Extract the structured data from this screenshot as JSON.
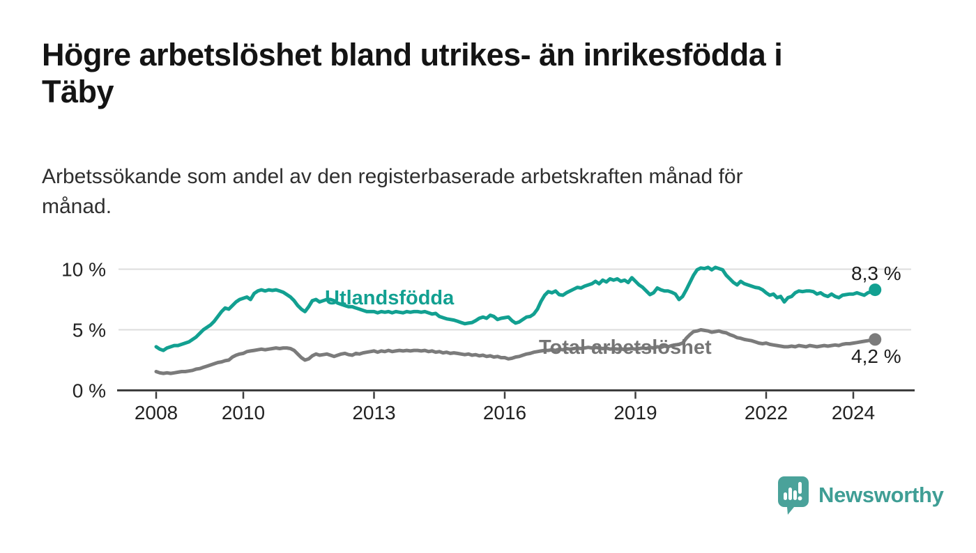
{
  "header": {
    "title": "Högre arbetslöshet bland utrikes- än inrikesfödda i Täby",
    "title_lines": [
      "Högre arbetslöshet bland utrikes- än inrikesfödda i",
      "Täby"
    ],
    "subtitle": "Arbetssökande som andel av den registerbaserade arbetskraften månad för månad.",
    "subtitle_lines": [
      "Arbetssökande som andel av den registerbaserade arbetskraften månad för",
      "månad."
    ]
  },
  "chart_data": {
    "type": "line",
    "title": "Högre arbetslöshet bland utrikes- än inrikesfödda i Täby",
    "xlabel": "",
    "ylabel": "Arbetssökande som andel av den registerbaserade arbetskraften",
    "x_unit": "month",
    "x_range": {
      "start": "2008-01",
      "end": "2024-07",
      "step": "monthly"
    },
    "ylim": [
      0,
      10.8
    ],
    "grid": "horizontal",
    "legend_position": "inline-on-line",
    "x_tick_years": [
      2008,
      2010,
      2013,
      2016,
      2019,
      2022,
      2024
    ],
    "x_tick_labels": [
      "2008",
      "2010",
      "2013",
      "2016",
      "2019",
      "2022",
      "2024"
    ],
    "y_ticks": [
      {
        "value": 0,
        "label": "0 %"
      },
      {
        "value": 5,
        "label": "5 %"
      },
      {
        "value": 10,
        "label": "10 %"
      }
    ],
    "series": [
      {
        "name": "Utlandsfödda",
        "color": "#12a091",
        "end_label": "8,3 %",
        "end_value": 8.3,
        "values": [
          3.6,
          3.4,
          3.3,
          3.5,
          3.6,
          3.7,
          3.7,
          3.8,
          3.9,
          4.0,
          4.2,
          4.4,
          4.7,
          5.0,
          5.2,
          5.4,
          5.7,
          6.1,
          6.5,
          6.8,
          6.7,
          7.0,
          7.3,
          7.5,
          7.6,
          7.7,
          7.5,
          8.0,
          8.2,
          8.3,
          8.2,
          8.3,
          8.25,
          8.3,
          8.2,
          8.1,
          7.9,
          7.7,
          7.4,
          7.0,
          6.7,
          6.5,
          6.9,
          7.4,
          7.5,
          7.3,
          7.4,
          7.5,
          7.5,
          7.4,
          7.2,
          7.1,
          7.0,
          6.9,
          6.9,
          6.8,
          6.7,
          6.6,
          6.5,
          6.5,
          6.5,
          6.4,
          6.5,
          6.45,
          6.5,
          6.4,
          6.5,
          6.45,
          6.4,
          6.5,
          6.45,
          6.5,
          6.5,
          6.45,
          6.5,
          6.4,
          6.3,
          6.35,
          6.1,
          6.0,
          5.9,
          5.85,
          5.8,
          5.7,
          5.6,
          5.5,
          5.55,
          5.6,
          5.75,
          5.95,
          6.05,
          5.95,
          6.2,
          6.1,
          5.85,
          5.95,
          6.0,
          6.05,
          5.75,
          5.55,
          5.65,
          5.85,
          6.05,
          6.1,
          6.3,
          6.7,
          7.35,
          7.85,
          8.15,
          8.05,
          8.2,
          7.9,
          7.85,
          8.05,
          8.2,
          8.35,
          8.5,
          8.45,
          8.6,
          8.7,
          8.8,
          9.0,
          8.8,
          9.1,
          8.95,
          9.2,
          9.1,
          9.2,
          9.0,
          9.1,
          8.9,
          9.3,
          9.0,
          8.7,
          8.5,
          8.2,
          7.9,
          8.05,
          8.45,
          8.3,
          8.2,
          8.2,
          8.1,
          7.95,
          7.5,
          7.75,
          8.3,
          8.9,
          9.5,
          9.95,
          10.1,
          10.05,
          10.15,
          9.95,
          10.15,
          10.05,
          9.95,
          9.5,
          9.2,
          8.9,
          8.7,
          9.0,
          8.8,
          8.7,
          8.6,
          8.5,
          8.45,
          8.3,
          8.05,
          7.85,
          7.95,
          7.65,
          7.75,
          7.3,
          7.65,
          7.75,
          8.05,
          8.2,
          8.15,
          8.2,
          8.2,
          8.15,
          7.95,
          8.05,
          7.85,
          7.75,
          7.95,
          7.75,
          7.65,
          7.85,
          7.9,
          7.95,
          7.95,
          8.05,
          7.95,
          7.85,
          8.05,
          8.15,
          8.3
        ]
      },
      {
        "name": "Total arbetslöshet",
        "color": "#7b7b7b",
        "label_color": "#757575",
        "end_label": "4,2 %",
        "end_value": 4.2,
        "values": [
          1.55,
          1.45,
          1.4,
          1.45,
          1.4,
          1.45,
          1.5,
          1.55,
          1.55,
          1.6,
          1.65,
          1.75,
          1.8,
          1.9,
          2.0,
          2.1,
          2.2,
          2.3,
          2.35,
          2.45,
          2.5,
          2.75,
          2.9,
          3.0,
          3.05,
          3.2,
          3.25,
          3.3,
          3.35,
          3.4,
          3.35,
          3.4,
          3.45,
          3.5,
          3.45,
          3.5,
          3.5,
          3.45,
          3.3,
          3.0,
          2.7,
          2.5,
          2.6,
          2.85,
          3.0,
          2.9,
          2.95,
          3.0,
          2.9,
          2.8,
          2.9,
          3.0,
          3.05,
          2.95,
          2.9,
          3.05,
          3.0,
          3.1,
          3.15,
          3.2,
          3.25,
          3.15,
          3.25,
          3.2,
          3.3,
          3.2,
          3.25,
          3.3,
          3.25,
          3.3,
          3.25,
          3.3,
          3.3,
          3.25,
          3.3,
          3.2,
          3.25,
          3.15,
          3.2,
          3.1,
          3.15,
          3.05,
          3.1,
          3.05,
          3.0,
          2.95,
          3.0,
          2.9,
          2.95,
          2.85,
          2.9,
          2.8,
          2.85,
          2.75,
          2.8,
          2.7,
          2.7,
          2.6,
          2.65,
          2.75,
          2.8,
          2.9,
          3.0,
          3.05,
          3.15,
          3.2,
          3.25,
          3.3,
          3.3,
          3.35,
          3.3,
          3.4,
          3.35,
          3.45,
          3.4,
          3.45,
          3.5,
          3.45,
          3.5,
          3.55,
          3.5,
          3.55,
          3.5,
          3.45,
          3.5,
          3.4,
          3.45,
          3.4,
          3.45,
          3.35,
          3.4,
          3.45,
          3.4,
          3.45,
          3.5,
          3.45,
          3.55,
          3.5,
          3.6,
          3.55,
          3.65,
          3.6,
          3.7,
          3.75,
          3.8,
          3.9,
          4.3,
          4.6,
          4.85,
          4.9,
          5.0,
          4.95,
          4.9,
          4.8,
          4.85,
          4.9,
          4.8,
          4.75,
          4.6,
          4.5,
          4.35,
          4.3,
          4.2,
          4.15,
          4.1,
          4.0,
          3.9,
          3.85,
          3.9,
          3.8,
          3.75,
          3.7,
          3.65,
          3.6,
          3.6,
          3.65,
          3.6,
          3.7,
          3.65,
          3.6,
          3.7,
          3.65,
          3.6,
          3.65,
          3.7,
          3.65,
          3.7,
          3.75,
          3.7,
          3.8,
          3.85,
          3.85,
          3.9,
          3.95,
          4.0,
          4.05,
          4.1,
          4.15,
          4.2
        ]
      }
    ],
    "style": {
      "grid_color": "#dcdcdc",
      "axis_color": "#3d3d3d",
      "tick_label_color": "#222222",
      "line_width": 5,
      "end_dot_radius": 9
    }
  },
  "footer": {
    "brand": "Newsworthy",
    "brand_color": "#3f9e95",
    "brand_bubble_color": "#4aa29a"
  }
}
